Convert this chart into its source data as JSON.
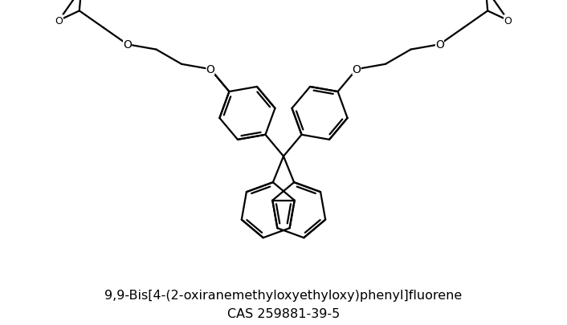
{
  "title": "9,9-Bis[4-(2-oxiranemethyloxyethyloxy)phenyl]fluorene",
  "cas": "CAS 259881-39-5",
  "figsize": [
    7.06,
    4.06
  ],
  "dpi": 100,
  "lw": 1.6,
  "title_fontsize": 11.5,
  "cas_fontsize": 11.5,
  "xlim": [
    0,
    10
  ],
  "ylim": [
    0,
    5.75
  ]
}
